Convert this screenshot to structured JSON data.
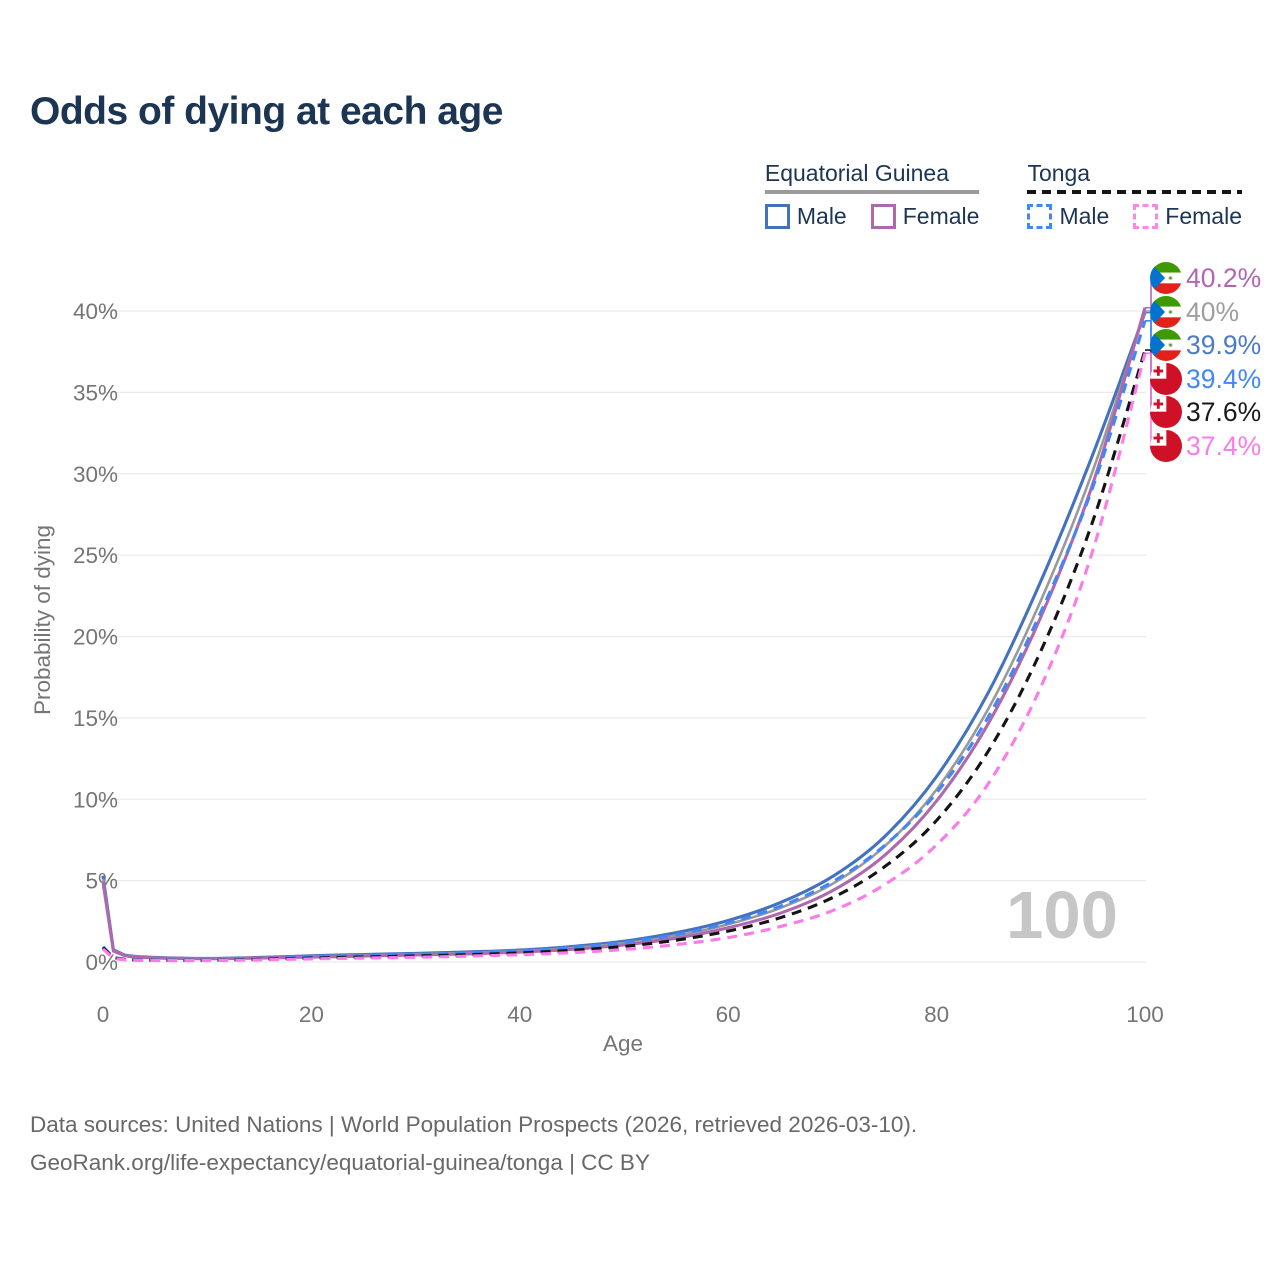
{
  "title": "Odds of dying at each age",
  "legend": {
    "groups": [
      {
        "name": "Equatorial Guinea",
        "underline_style": "solid",
        "underline_color": "#9a9a9a",
        "items": [
          {
            "label": "Male",
            "color": "#4472bd",
            "dashed": false
          },
          {
            "label": "Female",
            "color": "#ae68ae",
            "dashed": false
          }
        ]
      },
      {
        "name": "Tonga",
        "underline_style": "dashed",
        "underline_color": "#141414",
        "items": [
          {
            "label": "Male",
            "color": "#4287f5",
            "dashed": true
          },
          {
            "label": "Female",
            "color": "#fb87e9",
            "dashed": true
          }
        ]
      }
    ]
  },
  "chart_data": {
    "type": "line",
    "title": "Odds of dying at each age",
    "xlabel": "Age",
    "ylabel": "Probability of dying",
    "xlim": [
      0,
      100
    ],
    "ylim": [
      0,
      42
    ],
    "xticks": [
      0,
      20,
      40,
      60,
      80,
      100
    ],
    "yticks": [
      0,
      5,
      10,
      15,
      20,
      25,
      30,
      35,
      40
    ],
    "ytick_suffix": "%",
    "grid": "horizontal",
    "legend_position": "top-right",
    "watermark": "100",
    "ages": [
      0,
      1,
      2,
      3,
      5,
      10,
      15,
      20,
      25,
      30,
      35,
      40,
      45,
      50,
      55,
      60,
      65,
      70,
      75,
      80,
      85,
      90,
      95,
      100
    ],
    "series": [
      {
        "name": "Equatorial Guinea — Male",
        "country": "gq",
        "sex": "male",
        "color": "#4472bd",
        "dashed": false,
        "values": [
          5.3,
          0.75,
          0.45,
          0.35,
          0.28,
          0.22,
          0.28,
          0.38,
          0.46,
          0.53,
          0.62,
          0.74,
          0.95,
          1.28,
          1.8,
          2.55,
          3.65,
          5.25,
          7.7,
          11.4,
          16.6,
          23.4,
          31.2,
          39.9
        ]
      },
      {
        "name": "Equatorial Guinea — Both sexes",
        "country": "gq",
        "sex": "both",
        "color": "#9a9a9a",
        "dashed": false,
        "values": [
          5.1,
          0.71,
          0.43,
          0.33,
          0.26,
          0.21,
          0.26,
          0.34,
          0.41,
          0.48,
          0.56,
          0.67,
          0.86,
          1.16,
          1.62,
          2.32,
          3.32,
          4.8,
          7.1,
          10.6,
          15.6,
          22.2,
          30.2,
          40.0
        ]
      },
      {
        "name": "Equatorial Guinea — Female",
        "country": "gq",
        "sex": "female",
        "color": "#ae68ae",
        "dashed": false,
        "values": [
          4.9,
          0.67,
          0.41,
          0.31,
          0.25,
          0.2,
          0.24,
          0.3,
          0.36,
          0.43,
          0.5,
          0.61,
          0.78,
          1.05,
          1.46,
          2.1,
          3.0,
          4.38,
          6.55,
          9.9,
          14.7,
          21.2,
          29.4,
          40.2
        ]
      },
      {
        "name": "Tonga — Male",
        "country": "to",
        "sex": "male",
        "color": "#4287f5",
        "dashed": true,
        "values": [
          0.95,
          0.28,
          0.18,
          0.14,
          0.12,
          0.12,
          0.2,
          0.3,
          0.38,
          0.46,
          0.56,
          0.7,
          0.9,
          1.21,
          1.68,
          2.4,
          3.42,
          4.92,
          7.15,
          10.4,
          15.1,
          21.5,
          29.2,
          39.4
        ]
      },
      {
        "name": "Tonga — Both sexes",
        "country": "to",
        "sex": "both",
        "color": "#141414",
        "dashed": true,
        "values": [
          0.88,
          0.25,
          0.16,
          0.12,
          0.1,
          0.1,
          0.16,
          0.24,
          0.31,
          0.37,
          0.45,
          0.56,
          0.72,
          0.96,
          1.34,
          1.9,
          2.72,
          3.95,
          5.85,
          8.7,
          13.0,
          19.1,
          27.1,
          37.6
        ]
      },
      {
        "name": "Tonga — Female",
        "country": "to",
        "sex": "female",
        "color": "#fb7be9",
        "dashed": true,
        "values": [
          0.8,
          0.22,
          0.14,
          0.11,
          0.09,
          0.09,
          0.13,
          0.19,
          0.24,
          0.29,
          0.36,
          0.45,
          0.58,
          0.77,
          1.07,
          1.5,
          2.18,
          3.15,
          4.75,
          7.2,
          11.0,
          16.9,
          25.3,
          37.4
        ]
      }
    ],
    "end_labels": [
      {
        "series": "Equatorial Guinea — Female",
        "label": "40.2%",
        "value": 40.2,
        "color": "#b266b2",
        "country": "gq"
      },
      {
        "series": "Equatorial Guinea — Both sexes",
        "label": "40%",
        "value": 40.0,
        "color": "#9e9e9e",
        "country": "gq"
      },
      {
        "series": "Equatorial Guinea — Male",
        "label": "39.9%",
        "value": 39.9,
        "color": "#4a7bc8",
        "country": "gq"
      },
      {
        "series": "Tonga — Male",
        "label": "39.4%",
        "value": 39.4,
        "color": "#4287f5",
        "country": "to"
      },
      {
        "series": "Tonga — Both sexes",
        "label": "37.6%",
        "value": 37.6,
        "color": "#1a1a1a",
        "country": "to"
      },
      {
        "series": "Tonga — Female",
        "label": "37.4%",
        "value": 37.4,
        "color": "#fb7be9",
        "country": "to"
      }
    ]
  },
  "footer": {
    "line1": "Data sources: United Nations | World Population Prospects (2026, retrieved 2026-03-10).",
    "line2": "GeoRank.org/life-expectancy/equatorial-guinea/tonga | CC BY"
  }
}
